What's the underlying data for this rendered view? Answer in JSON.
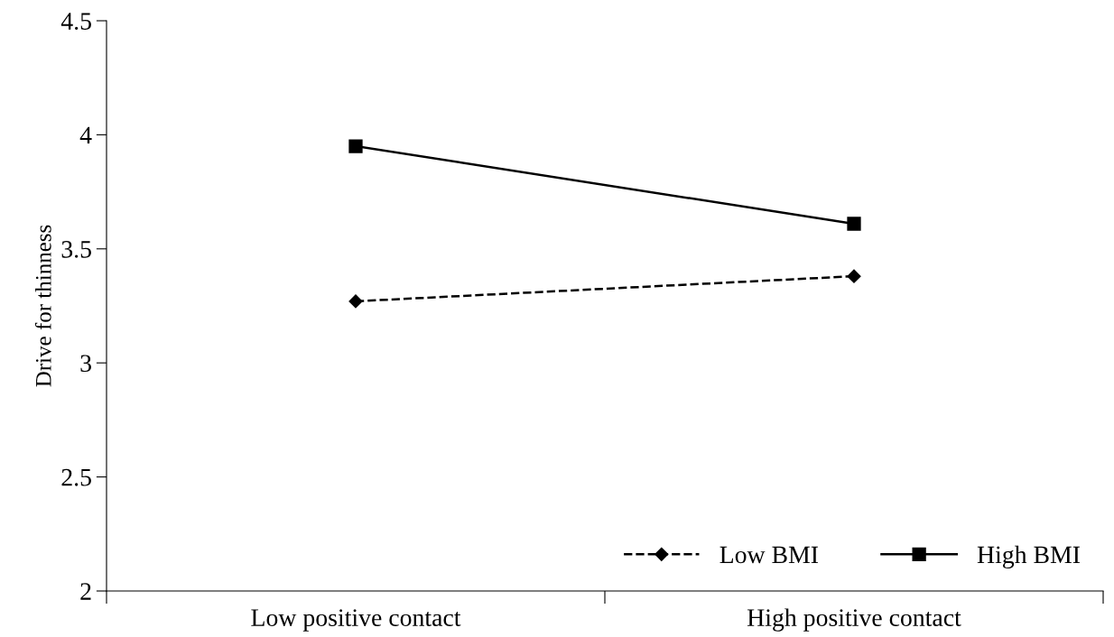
{
  "chart_data": {
    "type": "line",
    "ylabel": "Drive for thinness",
    "categories": [
      "Low positive contact",
      "High positive contact"
    ],
    "series": [
      {
        "name": "Low BMI",
        "color": "#000000",
        "values": [
          3.27,
          3.38
        ],
        "marker": "diamond",
        "line_style": "dashed"
      },
      {
        "name": "High BMI",
        "color": "#000000",
        "values": [
          3.95,
          3.61
        ],
        "marker": "square",
        "line_style": "solid"
      }
    ],
    "ylim": [
      2,
      4.5
    ],
    "yticks": [
      2,
      2.5,
      3,
      3.5,
      4,
      4.5
    ],
    "grid": false,
    "legend": "bottom right"
  }
}
